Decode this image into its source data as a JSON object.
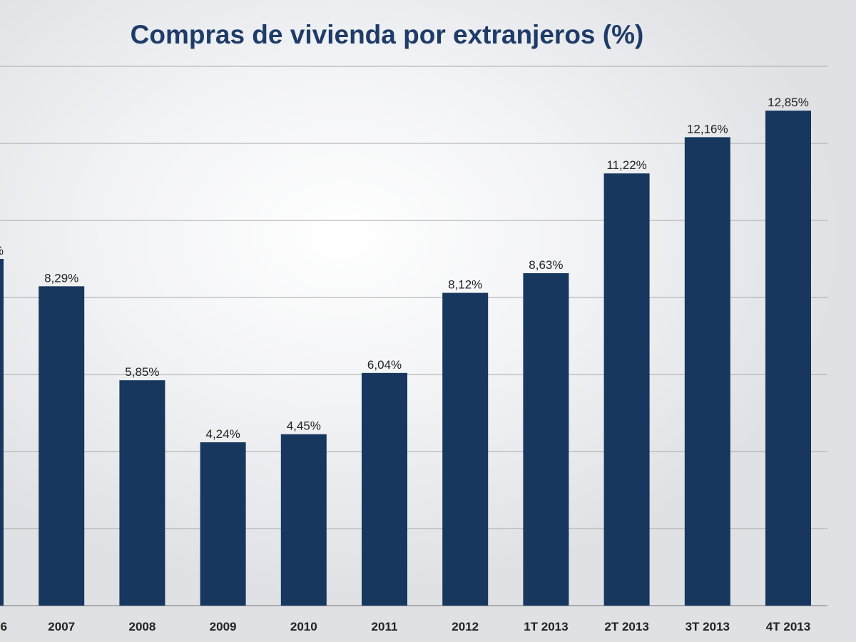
{
  "chart_data": {
    "type": "bar",
    "title": "Compras de vivienda por extranjeros (%)",
    "categories": [
      "6",
      "2007",
      "2008",
      "2009",
      "2010",
      "2011",
      "2012",
      "1T 2013",
      "2T 2013",
      "3T 2013",
      "4T 2013"
    ],
    "values": [
      9.0,
      8.29,
      5.85,
      4.24,
      4.45,
      6.04,
      8.12,
      8.63,
      11.22,
      12.16,
      12.85
    ],
    "data_labels": [
      "%",
      "8,29%",
      "5,85%",
      "4,24%",
      "4,45%",
      "6,04%",
      "8,12%",
      "8,63%",
      "11,22%",
      "12,16%",
      "12,85%"
    ],
    "xlabel": "",
    "ylabel": "",
    "ylim": [
      0,
      14
    ],
    "grid": true,
    "bar_color": "#17375e",
    "title_color": "#1f3c68"
  }
}
